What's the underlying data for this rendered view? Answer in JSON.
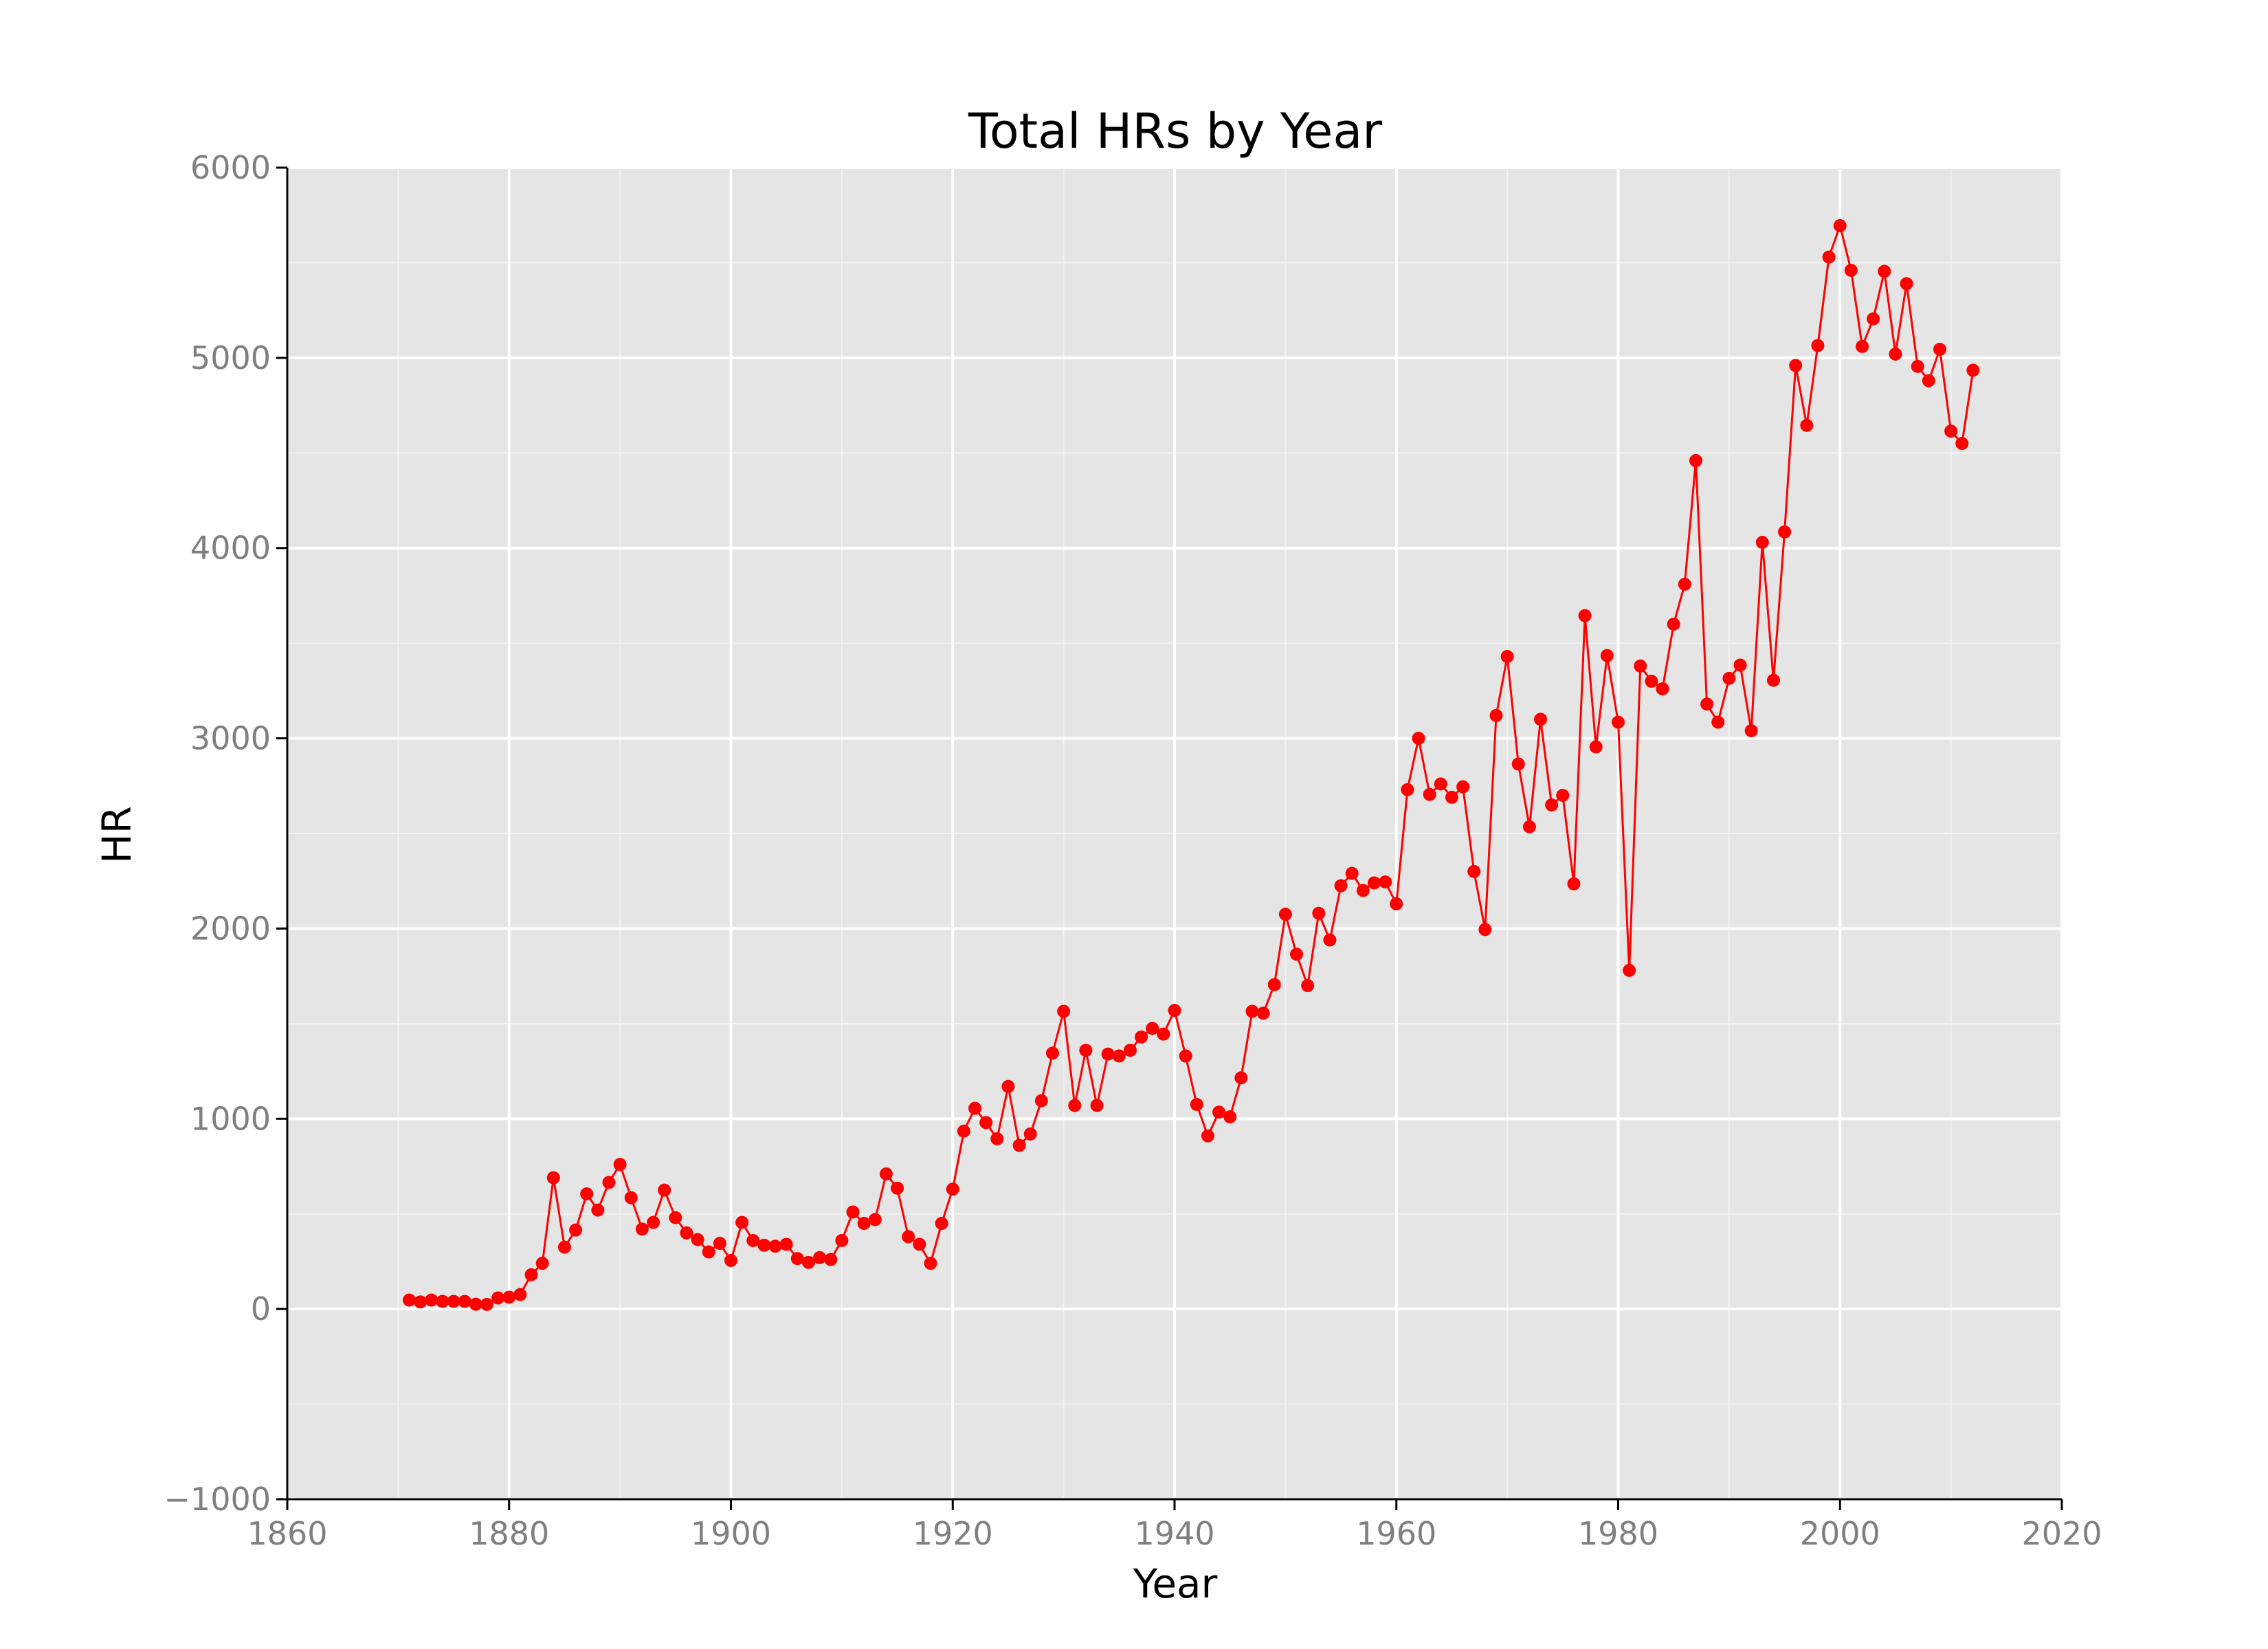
{
  "colors": {
    "panel_background": "#e5e5e5",
    "major_grid": "#ffffff",
    "minor_grid": "#f2f2f2",
    "series": "#ff0000",
    "tick_text": "#7f7f7f",
    "title_text": "#000000"
  },
  "chart_data": {
    "type": "line",
    "title": "Total HRs by Year",
    "xlabel": "Year",
    "ylabel": "HR",
    "xlim": [
      1860,
      2020
    ],
    "ylim": [
      -1000,
      6000
    ],
    "x_ticks": [
      1860,
      1880,
      1900,
      1920,
      1940,
      1960,
      1980,
      2000,
      2020
    ],
    "y_ticks": [
      -1000,
      0,
      1000,
      2000,
      3000,
      4000,
      5000,
      6000
    ],
    "x_tick_labels": [
      "1860",
      "1880",
      "1900",
      "1920",
      "1940",
      "1960",
      "1980",
      "2000",
      "2020"
    ],
    "y_tick_labels": [
      "−1000",
      "0",
      "1000",
      "2000",
      "3000",
      "4000",
      "5000",
      "6000"
    ],
    "grid": true,
    "markers": "circle",
    "series": [
      {
        "x": [
          1871,
          1872,
          1873,
          1874,
          1875,
          1876,
          1877,
          1878,
          1879,
          1880,
          1881,
          1882,
          1883,
          1884,
          1885,
          1886,
          1887,
          1888,
          1889,
          1890,
          1891,
          1892,
          1893,
          1894,
          1895,
          1896,
          1897,
          1898,
          1899,
          1900,
          1901,
          1902,
          1903,
          1904,
          1905,
          1906,
          1907,
          1908,
          1909,
          1910,
          1911,
          1912,
          1913,
          1914,
          1915,
          1916,
          1917,
          1918,
          1919,
          1920,
          1921,
          1922,
          1923,
          1924,
          1925,
          1926,
          1927,
          1928,
          1929,
          1930,
          1931,
          1932,
          1933,
          1934,
          1935,
          1936,
          1937,
          1938,
          1939,
          1940,
          1941,
          1942,
          1943,
          1944,
          1945,
          1946,
          1947,
          1948,
          1949,
          1950,
          1951,
          1952,
          1953,
          1954,
          1955,
          1956,
          1957,
          1958,
          1959,
          1960,
          1961,
          1962,
          1963,
          1964,
          1965,
          1966,
          1967,
          1968,
          1969,
          1970,
          1971,
          1972,
          1973,
          1974,
          1975,
          1976,
          1977,
          1978,
          1979,
          1980,
          1981,
          1982,
          1983,
          1984,
          1985,
          1986,
          1987,
          1988,
          1989,
          1990,
          1991,
          1992,
          1993,
          1994,
          1995,
          1996,
          1997,
          1998,
          1999,
          2000,
          2001,
          2002,
          2003,
          2004,
          2005,
          2006,
          2007,
          2008,
          2009,
          2010,
          2011,
          2012
        ],
        "values": [
          47,
          37,
          47,
          40,
          40,
          40,
          25,
          24,
          58,
          62,
          76,
          180,
          240,
          690,
          325,
          415,
          605,
          520,
          665,
          760,
          585,
          420,
          455,
          625,
          480,
          400,
          365,
          300,
          345,
          255,
          455,
          360,
          335,
          330,
          340,
          265,
          245,
          270,
          260,
          360,
          510,
          450,
          470,
          710,
          635,
          380,
          340,
          240,
          450,
          630,
          935,
          1055,
          980,
          895,
          1170,
          860,
          920,
          1095,
          1345,
          1565,
          1070,
          1360,
          1070,
          1340,
          1330,
          1360,
          1430,
          1475,
          1445,
          1570,
          1330,
          1075,
          910,
          1035,
          1010,
          1215,
          1565,
          1555,
          1705,
          2075,
          1865,
          1700,
          2080,
          1940,
          2225,
          2290,
          2200,
          2240,
          2245,
          2130,
          2730,
          3000,
          2705,
          2760,
          2690,
          2745,
          2300,
          1995,
          3120,
          3430,
          2865,
          2535,
          3100,
          2650,
          2700,
          2235,
          3645,
          2955,
          3435,
          3085,
          1780,
          3380,
          3300,
          3260,
          3600,
          3810,
          4460,
          3180,
          3085,
          3315,
          3385,
          3040,
          4030,
          3305,
          4085,
          4960,
          4645,
          5065,
          5530,
          5695,
          5460,
          5060,
          5205,
          5455,
          5020,
          5390,
          4955,
          4880,
          5045,
          4615,
          4550,
          4935
        ]
      }
    ]
  }
}
